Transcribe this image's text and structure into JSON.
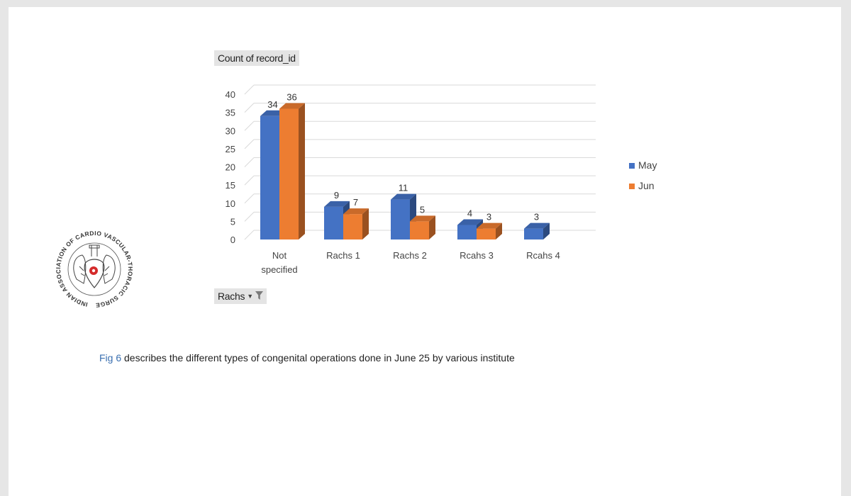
{
  "pivot": {
    "measure_label": "Count of record_id",
    "field_filter_label": "Rachs"
  },
  "chart_data": {
    "type": "bar",
    "style": "3d-clustered-column",
    "categories": [
      "Not specified",
      "Rachs 1",
      "Rachs 2",
      "Rcahs 3",
      "Rcahs 4"
    ],
    "series": [
      {
        "name": "May",
        "color": "#4472c4",
        "values": [
          34,
          9,
          11,
          4,
          3
        ]
      },
      {
        "name": "Jun",
        "color": "#ed7d31",
        "values": [
          36,
          7,
          5,
          3,
          null
        ]
      }
    ],
    "yticks": [
      0,
      5,
      10,
      15,
      20,
      25,
      30,
      35,
      40
    ],
    "ylim": [
      0,
      40
    ],
    "grid": true,
    "legend": "right"
  },
  "caption": {
    "fig_label": "Fig 6",
    "text": " describes the different types of congenital operations done in June 25 by various institute"
  },
  "logo": {
    "ring_text": "INDIAN ASSOCIATION OF CARDIO VASCULAR-THORACIC SURGEONS"
  }
}
